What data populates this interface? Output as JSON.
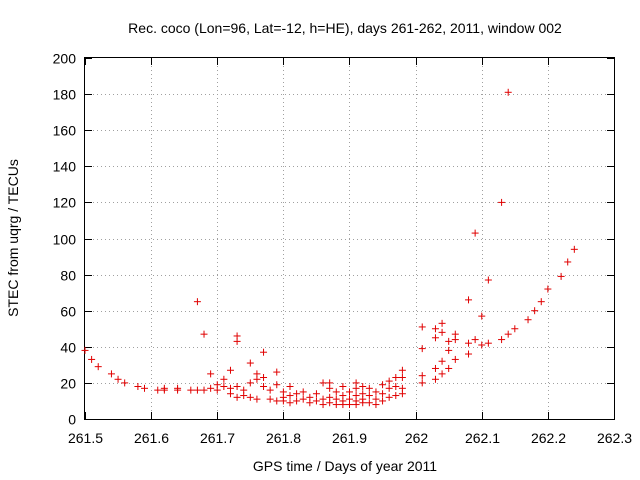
{
  "chart_data": {
    "type": "scatter",
    "title": "Rec. coco (Lon=96, Lat=-12, h=HE), days 261-262, 2011, window 002",
    "xlabel": "GPS time / Days of year 2011",
    "ylabel": "STEC from uqrg / TECUs",
    "xlim": [
      261.5,
      262.3
    ],
    "ylim": [
      0,
      200
    ],
    "xticks": [
      261.5,
      261.6,
      261.7,
      261.8,
      261.9,
      262,
      262.1,
      262.2,
      262.3
    ],
    "xtick_labels": [
      "261.5",
      "261.6",
      "261.7",
      "261.8",
      "261.9",
      "262",
      "262.1",
      "262.2",
      "262.3"
    ],
    "yticks": [
      0,
      20,
      40,
      60,
      80,
      100,
      120,
      140,
      160,
      180,
      200
    ],
    "ytick_labels": [
      "0",
      "20",
      "40",
      "60",
      "80",
      "100",
      "120",
      "140",
      "160",
      "180",
      "200"
    ],
    "grid": true,
    "marker": "+",
    "color": "#e00000",
    "series": [
      {
        "name": "STEC",
        "points": [
          [
            261.5,
            38
          ],
          [
            261.51,
            33
          ],
          [
            261.52,
            29
          ],
          [
            261.54,
            25
          ],
          [
            261.55,
            22
          ],
          [
            261.56,
            20
          ],
          [
            261.58,
            18
          ],
          [
            261.59,
            17
          ],
          [
            261.61,
            16
          ],
          [
            261.62,
            16
          ],
          [
            261.62,
            17
          ],
          [
            261.64,
            16
          ],
          [
            261.64,
            17
          ],
          [
            261.66,
            16
          ],
          [
            261.67,
            16
          ],
          [
            261.67,
            65
          ],
          [
            261.68,
            47
          ],
          [
            261.68,
            16
          ],
          [
            261.69,
            17
          ],
          [
            261.69,
            25
          ],
          [
            261.7,
            19
          ],
          [
            261.7,
            16
          ],
          [
            261.71,
            22
          ],
          [
            261.71,
            18
          ],
          [
            261.72,
            27
          ],
          [
            261.72,
            14
          ],
          [
            261.72,
            17
          ],
          [
            261.73,
            46
          ],
          [
            261.73,
            43
          ],
          [
            261.73,
            18
          ],
          [
            261.73,
            12
          ],
          [
            261.74,
            13
          ],
          [
            261.74,
            16
          ],
          [
            261.75,
            31
          ],
          [
            261.75,
            20
          ],
          [
            261.75,
            12
          ],
          [
            261.76,
            25
          ],
          [
            261.76,
            22
          ],
          [
            261.76,
            11
          ],
          [
            261.77,
            37
          ],
          [
            261.77,
            23
          ],
          [
            261.77,
            18
          ],
          [
            261.78,
            16
          ],
          [
            261.78,
            11
          ],
          [
            261.79,
            26
          ],
          [
            261.79,
            19
          ],
          [
            261.79,
            10
          ],
          [
            261.8,
            15
          ],
          [
            261.8,
            12
          ],
          [
            261.8,
            10
          ],
          [
            261.81,
            18
          ],
          [
            261.81,
            13
          ],
          [
            261.81,
            9
          ],
          [
            261.82,
            14
          ],
          [
            261.82,
            10
          ],
          [
            261.83,
            15
          ],
          [
            261.83,
            11
          ],
          [
            261.84,
            12
          ],
          [
            261.84,
            9
          ],
          [
            261.85,
            14
          ],
          [
            261.85,
            10
          ],
          [
            261.86,
            20
          ],
          [
            261.86,
            11
          ],
          [
            261.86,
            8
          ],
          [
            261.87,
            20
          ],
          [
            261.87,
            17
          ],
          [
            261.87,
            12
          ],
          [
            261.87,
            9
          ],
          [
            261.88,
            15
          ],
          [
            261.88,
            11
          ],
          [
            261.88,
            8
          ],
          [
            261.89,
            18
          ],
          [
            261.89,
            13
          ],
          [
            261.89,
            10
          ],
          [
            261.89,
            8
          ],
          [
            261.9,
            15
          ],
          [
            261.9,
            11
          ],
          [
            261.9,
            8
          ],
          [
            261.91,
            20
          ],
          [
            261.91,
            17
          ],
          [
            261.91,
            13
          ],
          [
            261.91,
            10
          ],
          [
            261.91,
            8
          ],
          [
            261.92,
            18
          ],
          [
            261.92,
            14
          ],
          [
            261.92,
            11
          ],
          [
            261.92,
            9
          ],
          [
            261.93,
            17
          ],
          [
            261.93,
            13
          ],
          [
            261.93,
            9
          ],
          [
            261.94,
            15
          ],
          [
            261.94,
            11
          ],
          [
            261.94,
            8
          ],
          [
            261.95,
            19
          ],
          [
            261.95,
            14
          ],
          [
            261.95,
            10
          ],
          [
            261.96,
            21
          ],
          [
            261.96,
            17
          ],
          [
            261.96,
            12
          ],
          [
            261.97,
            23
          ],
          [
            261.97,
            18
          ],
          [
            261.97,
            13
          ],
          [
            261.98,
            27
          ],
          [
            261.98,
            23
          ],
          [
            261.98,
            17
          ],
          [
            261.98,
            14
          ],
          [
            262.01,
            51
          ],
          [
            262.01,
            39
          ],
          [
            262.01,
            24
          ],
          [
            262.01,
            20
          ],
          [
            262.03,
            50
          ],
          [
            262.03,
            45
          ],
          [
            262.03,
            28
          ],
          [
            262.03,
            22
          ],
          [
            262.04,
            53
          ],
          [
            262.04,
            48
          ],
          [
            262.04,
            32
          ],
          [
            262.04,
            25
          ],
          [
            262.05,
            43
          ],
          [
            262.05,
            38
          ],
          [
            262.05,
            28
          ],
          [
            262.06,
            47
          ],
          [
            262.06,
            44
          ],
          [
            262.06,
            33
          ],
          [
            262.08,
            66
          ],
          [
            262.08,
            42
          ],
          [
            262.08,
            36
          ],
          [
            262.09,
            103
          ],
          [
            262.09,
            44
          ],
          [
            262.1,
            57
          ],
          [
            262.1,
            41
          ],
          [
            262.11,
            77
          ],
          [
            262.11,
            42
          ],
          [
            262.13,
            120
          ],
          [
            262.13,
            44
          ],
          [
            262.14,
            181
          ],
          [
            262.14,
            47
          ],
          [
            262.15,
            50
          ],
          [
            262.17,
            55
          ],
          [
            262.18,
            60
          ],
          [
            262.19,
            65
          ],
          [
            262.2,
            72
          ],
          [
            262.22,
            79
          ],
          [
            262.23,
            87
          ],
          [
            262.24,
            94
          ]
        ]
      }
    ]
  }
}
